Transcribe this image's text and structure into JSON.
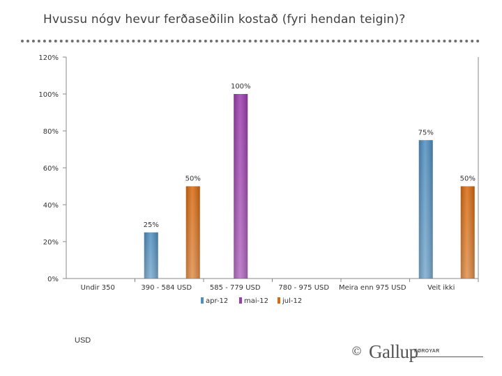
{
  "page": {
    "title": "Hvussu nógv hevur ferðaseðilin kostað (fyri hendan teigin)?",
    "unit_note": "USD"
  },
  "logo": {
    "copyright_symbol": "©",
    "wordmark": "Gallup",
    "sub": "FØROYAR"
  },
  "chart_data": {
    "type": "bar",
    "categories": [
      "Undir 350",
      "390 - 584 USD",
      "585 - 779 USD",
      "780 - 975 USD",
      "Meira enn 975 USD",
      "Veit ikki"
    ],
    "series": [
      {
        "name": "apr-12",
        "values": [
          null,
          25,
          null,
          null,
          null,
          75
        ],
        "color": "#4f8fc0"
      },
      {
        "name": "mai-12",
        "values": [
          null,
          null,
          100,
          null,
          null,
          null
        ],
        "color": "#9b3cae"
      },
      {
        "name": "jul-12",
        "values": [
          null,
          50,
          null,
          null,
          null,
          50
        ],
        "color": "#d86a10"
      }
    ],
    "ylim": [
      0,
      120
    ],
    "yticks": [
      "0%",
      "20%",
      "40%",
      "60%",
      "80%",
      "100%",
      "120%"
    ],
    "ytick_values": [
      0,
      20,
      40,
      60,
      80,
      100,
      120
    ],
    "data_labels": true,
    "value_format": "percent",
    "legend_position": "bottom",
    "grid": false
  }
}
